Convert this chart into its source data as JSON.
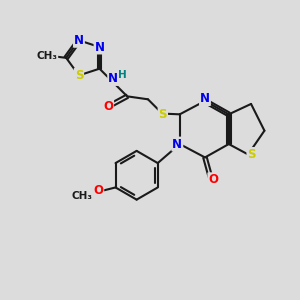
{
  "background_color": "#dcdcdc",
  "bond_color": "#1a1a1a",
  "atom_colors": {
    "N": "#0000ee",
    "S": "#cccc00",
    "O": "#ff0000",
    "H": "#008080",
    "C": "#1a1a1a"
  },
  "bond_width": 1.5,
  "figsize": [
    3.0,
    3.0
  ],
  "dpi": 100
}
